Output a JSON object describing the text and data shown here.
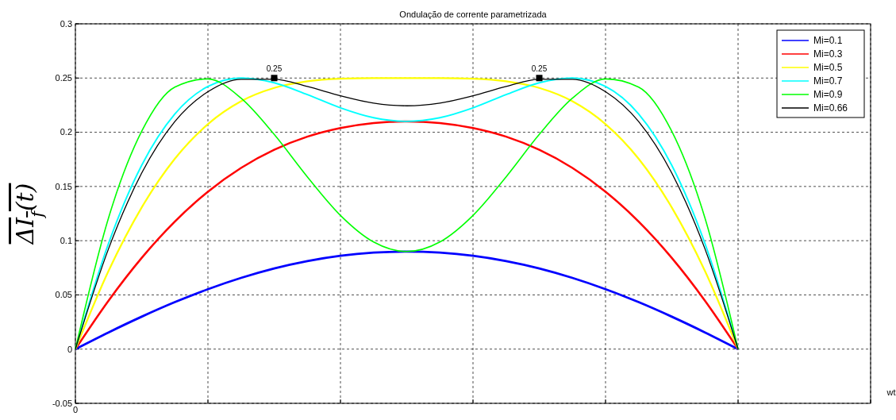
{
  "chart_data": {
    "type": "line",
    "title": "Ondulação de corrente parametrizada",
    "xlabel": "wt",
    "ylabel": "ΔI$_{f}$(t)",
    "categories": [
      "0",
      null,
      null,
      null,
      null,
      null,
      null,
      null,
      null,
      null,
      null,
      null,
      null,
      null,
      null,
      null,
      null,
      null,
      null,
      null,
      null,
      null,
      null,
      null,
      null
    ],
    "series": [
      {
        "name": "Mi=0.1",
        "color": "#0000ff",
        "values": [
          0,
          0.0154,
          0.0299,
          0.0433,
          0.0553,
          0.0657,
          0.0744,
          0.0812,
          0.0861,
          0.089,
          0.09,
          0.089,
          0.0861,
          0.0812,
          0.0744,
          0.0657,
          0.0553,
          0.0433,
          0.0299,
          0.0154,
          0,
          null,
          null,
          null,
          null
        ]
      },
      {
        "name": "Mi=0.3",
        "color": "#ff0000",
        "values": [
          0,
          0.0447,
          0.0841,
          0.1176,
          0.1452,
          0.1671,
          0.1838,
          0.1959,
          0.2039,
          0.2085,
          0.21,
          0.2085,
          0.2039,
          0.1959,
          0.1838,
          0.1671,
          0.1452,
          0.1176,
          0.0841,
          0.0447,
          0,
          null,
          null,
          null,
          null
        ]
      },
      {
        "name": "Mi=0.5",
        "color": "#ffff00",
        "values": [
          0,
          0.0721,
          0.1306,
          0.1755,
          0.2075,
          0.2286,
          0.2409,
          0.247,
          0.2494,
          0.25,
          0.25,
          0.25,
          0.2494,
          0.247,
          0.2409,
          0.2286,
          0.2075,
          0.1755,
          0.1306,
          0.0721,
          0,
          null,
          null,
          null,
          null
        ]
      },
      {
        "name": "Mi=0.7",
        "color": "#00ffff",
        "values": [
          0,
          0.0975,
          0.1695,
          0.2168,
          0.2422,
          0.25,
          0.2456,
          0.2347,
          0.2225,
          0.2134,
          0.21,
          0.2134,
          0.2225,
          0.2347,
          0.2456,
          0.25,
          0.2422,
          0.2168,
          0.1695,
          0.0975,
          0,
          null,
          null,
          null,
          null
        ]
      },
      {
        "name": "Mi=0.9",
        "color": "#00ff00",
        "values": [
          0,
          0.121,
          0.2008,
          0.2416,
          0.2492,
          0.2314,
          0.198,
          0.1589,
          0.1233,
          0.0988,
          0.09,
          0.0988,
          0.1233,
          0.1589,
          0.198,
          0.2314,
          0.2492,
          0.2416,
          0.2008,
          0.121,
          0,
          null,
          null,
          null,
          null
        ]
      },
      {
        "name": "Mi=0.66",
        "color": "#000000",
        "values": [
          0,
          0.0925,
          0.1623,
          0.2098,
          0.2374,
          0.2489,
          0.2489,
          0.2422,
          0.2337,
          0.2269,
          0.2244,
          0.2269,
          0.2337,
          0.2422,
          0.2489,
          0.2489,
          0.2374,
          0.2098,
          0.1623,
          0.0925,
          0,
          null,
          null,
          null,
          null
        ]
      },
      {
        "type": "scatter",
        "marker": "square",
        "color": "#000000",
        "values": [
          null,
          null,
          null,
          null,
          null,
          null,
          0.25,
          null,
          null,
          null,
          null,
          null,
          null,
          null,
          0.25,
          null,
          null,
          null,
          null,
          null,
          null,
          null,
          null,
          null,
          null
        ],
        "value_labels": [
          null,
          null,
          null,
          null,
          null,
          null,
          "0.25",
          null,
          null,
          null,
          null,
          null,
          null,
          null,
          "0.25",
          null,
          null,
          null,
          null,
          null,
          null,
          null,
          null,
          null,
          null
        ]
      }
    ],
    "ylim": [
      -0.05,
      0.3
    ],
    "yticks": [
      -0.05,
      0,
      0.05,
      0.1,
      0.15,
      0.2,
      0.25,
      0.3
    ],
    "grid": true,
    "legend": "top right",
    "line_style": "solid"
  }
}
